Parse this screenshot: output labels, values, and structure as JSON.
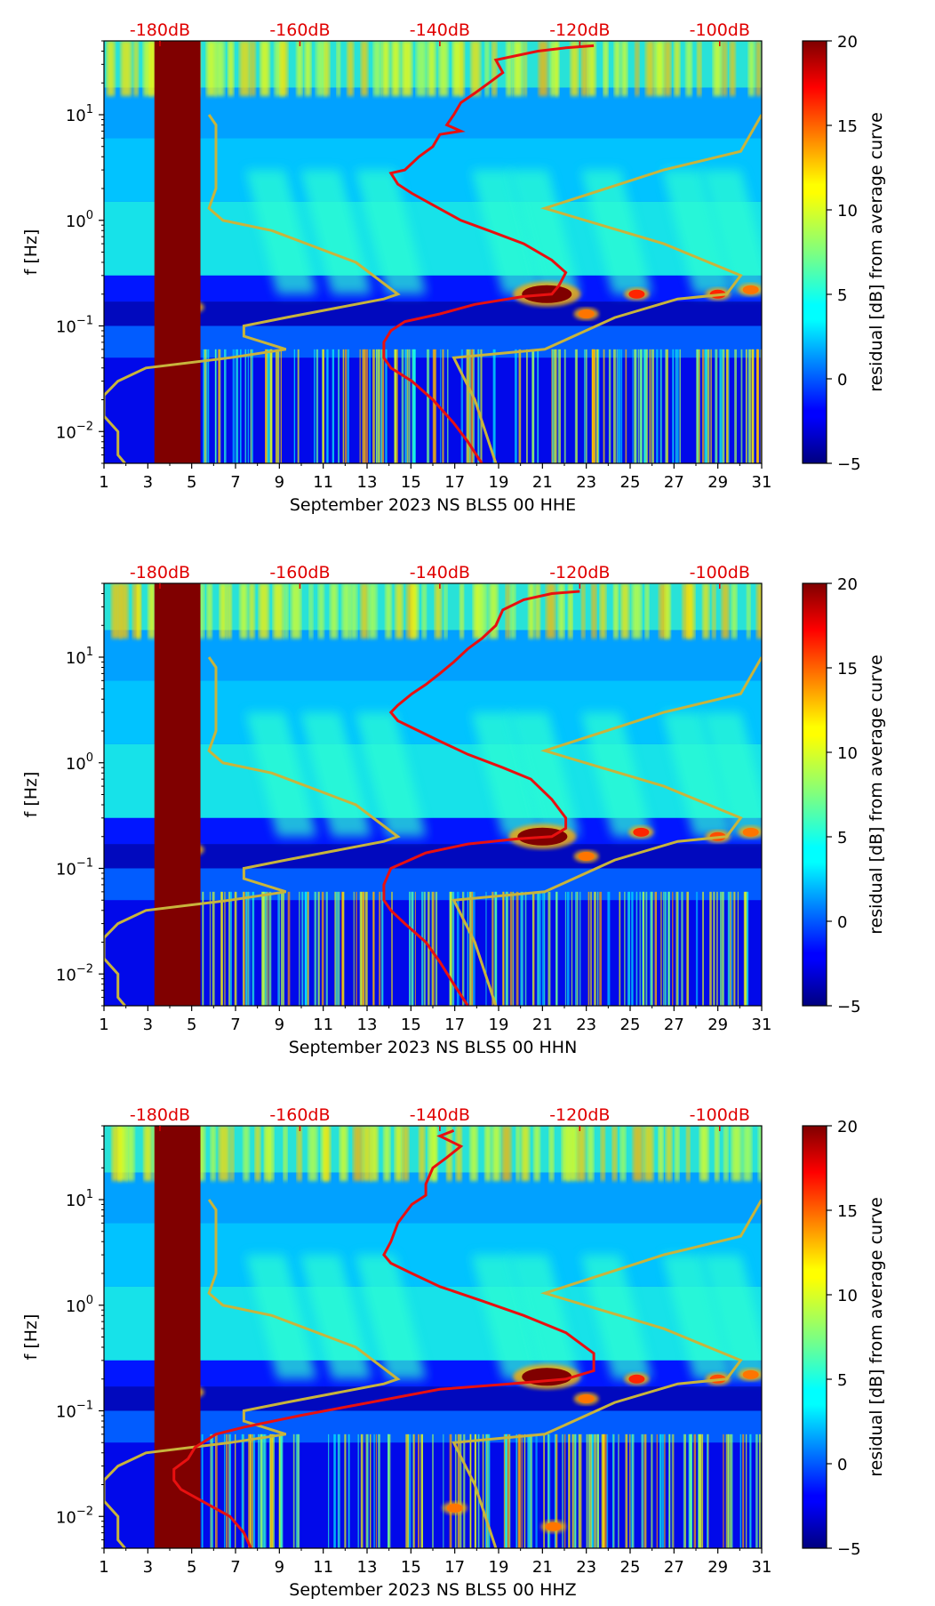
{
  "chart_data": [
    {
      "type": "heatmap",
      "channel": "HHE",
      "xlabel": "September 2023 NS BLS5 00 HHE",
      "ylabel": "f [Hz]",
      "x_ticks": [
        "1",
        "3",
        "5",
        "7",
        "9",
        "11",
        "13",
        "15",
        "17",
        "19",
        "21",
        "23",
        "25",
        "27",
        "29",
        "31"
      ],
      "x_range": [
        1,
        31
      ],
      "y_scale": "log",
      "y_range": [
        0.005,
        50
      ],
      "y_ticks": [
        {
          "base": "10",
          "exp": "1",
          "value": 10
        },
        {
          "base": "10",
          "exp": "0",
          "value": 1
        },
        {
          "base": "10",
          "exp": "−1",
          "value": 0.1
        },
        {
          "base": "10",
          "exp": "−2",
          "value": 0.01
        }
      ],
      "top_axis_labels": [
        "-180dB",
        "-160dB",
        "-140dB",
        "-120dB",
        "-100dB"
      ],
      "top_axis_db_range": [
        -188,
        -94
      ],
      "colorbar": {
        "label": "residual [dB] from average curve",
        "min": -5,
        "max": 20,
        "ticks": [
          "20",
          "15",
          "10",
          "5",
          "0",
          "−5"
        ]
      },
      "data_gap": {
        "x_start": 3.3,
        "x_end": 5.4,
        "color": "#800000"
      },
      "red_curve": {
        "name": "average PSD",
        "points": [
          [
            -118,
            45
          ],
          [
            -122,
            43
          ],
          [
            -126,
            40
          ],
          [
            -132,
            33
          ],
          [
            -131,
            25
          ],
          [
            -133,
            20
          ],
          [
            -135,
            16
          ],
          [
            -137,
            13
          ],
          [
            -138,
            10
          ],
          [
            -139,
            8
          ],
          [
            -137,
            7
          ],
          [
            -140,
            6.5
          ],
          [
            -141,
            5
          ],
          [
            -143,
            4
          ],
          [
            -145,
            3
          ],
          [
            -147,
            2.8
          ],
          [
            -146,
            2.2
          ],
          [
            -144,
            1.8
          ],
          [
            -141,
            1.4
          ],
          [
            -137,
            1.0
          ],
          [
            -133,
            0.8
          ],
          [
            -128,
            0.6
          ],
          [
            -124,
            0.42
          ],
          [
            -122,
            0.32
          ],
          [
            -123,
            0.24
          ],
          [
            -124,
            0.2
          ],
          [
            -128,
            0.19
          ],
          [
            -135,
            0.16
          ],
          [
            -140,
            0.13
          ],
          [
            -145,
            0.11
          ],
          [
            -147,
            0.09
          ],
          [
            -148,
            0.07
          ],
          [
            -148,
            0.05
          ],
          [
            -147,
            0.04
          ],
          [
            -144,
            0.03
          ],
          [
            -141,
            0.02
          ],
          [
            -138,
            0.012
          ],
          [
            -136,
            0.008
          ],
          [
            -134,
            0.005
          ]
        ]
      },
      "yellow_curve": {
        "name": "Peterson NLNM/NHNM",
        "points": [
          [
            -173,
            10
          ],
          [
            -172,
            8
          ],
          [
            -172,
            4
          ],
          [
            -172,
            2
          ],
          [
            -173,
            1.3
          ],
          [
            -171,
            1.0
          ],
          [
            -164,
            0.8
          ],
          [
            -152,
            0.4
          ],
          [
            -146,
            0.2
          ],
          [
            -148,
            0.18
          ],
          [
            -162,
            0.12
          ],
          [
            -168,
            0.1
          ],
          [
            -168,
            0.08
          ],
          [
            -162,
            0.06
          ],
          [
            -170,
            0.05
          ],
          [
            -182,
            0.04
          ],
          [
            -186,
            0.03
          ],
          [
            -188,
            0.022
          ],
          [
            -188,
            0.014
          ],
          [
            -186,
            0.01
          ],
          [
            -186,
            0.006
          ],
          [
            -185,
            0.005
          ]
        ],
        "high_points": [
          [
            -94,
            10
          ],
          [
            -97,
            4.5
          ],
          [
            -108,
            3
          ],
          [
            -125,
            1.3
          ],
          [
            -108,
            0.6
          ],
          [
            -97,
            0.3
          ],
          [
            -99,
            0.2
          ],
          [
            -106,
            0.18
          ],
          [
            -115,
            0.12
          ],
          [
            -125,
            0.06
          ],
          [
            -138,
            0.05
          ],
          [
            -135,
            0.02
          ],
          [
            -132,
            0.005
          ]
        ]
      },
      "hot_spots": [
        {
          "x": 21.2,
          "f": 0.2,
          "value": 20
        },
        {
          "x": 25.3,
          "f": 0.2,
          "value": 16
        },
        {
          "x": 29.0,
          "f": 0.2,
          "value": 16
        },
        {
          "x": 30.5,
          "f": 0.22,
          "value": 14
        },
        {
          "x": 23.0,
          "f": 0.13,
          "value": 14
        },
        {
          "x": 5.0,
          "f": 0.15,
          "value": 15
        }
      ]
    },
    {
      "type": "heatmap",
      "channel": "HHN",
      "xlabel": "September 2023 NS BLS5 00 HHN",
      "ylabel": "f [Hz]",
      "x_ticks": [
        "1",
        "3",
        "5",
        "7",
        "9",
        "11",
        "13",
        "15",
        "17",
        "19",
        "21",
        "23",
        "25",
        "27",
        "29",
        "31"
      ],
      "x_range": [
        1,
        31
      ],
      "y_scale": "log",
      "y_range": [
        0.005,
        50
      ],
      "y_ticks": [
        {
          "base": "10",
          "exp": "1",
          "value": 10
        },
        {
          "base": "10",
          "exp": "0",
          "value": 1
        },
        {
          "base": "10",
          "exp": "−1",
          "value": 0.1
        },
        {
          "base": "10",
          "exp": "−2",
          "value": 0.01
        }
      ],
      "top_axis_labels": [
        "-180dB",
        "-160dB",
        "-140dB",
        "-120dB",
        "-100dB"
      ],
      "top_axis_db_range": [
        -188,
        -94
      ],
      "colorbar": {
        "label": "residual [dB] from average curve",
        "min": -5,
        "max": 20,
        "ticks": [
          "20",
          "15",
          "10",
          "5",
          "0",
          "−5"
        ]
      },
      "data_gap": {
        "x_start": 3.3,
        "x_end": 5.4,
        "color": "#800000"
      },
      "red_curve": {
        "name": "average PSD",
        "points": [
          [
            -120,
            42
          ],
          [
            -124,
            40
          ],
          [
            -128,
            35
          ],
          [
            -131,
            28
          ],
          [
            -132,
            20
          ],
          [
            -134,
            15
          ],
          [
            -136,
            12
          ],
          [
            -138,
            9
          ],
          [
            -140,
            7
          ],
          [
            -142,
            5.5
          ],
          [
            -144,
            4.5
          ],
          [
            -146,
            3.5
          ],
          [
            -147,
            3
          ],
          [
            -146,
            2.5
          ],
          [
            -143,
            2
          ],
          [
            -140,
            1.6
          ],
          [
            -136,
            1.2
          ],
          [
            -131,
            0.9
          ],
          [
            -127,
            0.7
          ],
          [
            -124,
            0.45
          ],
          [
            -122,
            0.3
          ],
          [
            -122,
            0.24
          ],
          [
            -124,
            0.2
          ],
          [
            -129,
            0.19
          ],
          [
            -136,
            0.17
          ],
          [
            -142,
            0.14
          ],
          [
            -147,
            0.1
          ],
          [
            -148,
            0.07
          ],
          [
            -148,
            0.05
          ],
          [
            -147,
            0.04
          ],
          [
            -145,
            0.03
          ],
          [
            -142,
            0.02
          ],
          [
            -140,
            0.013
          ],
          [
            -138,
            0.008
          ],
          [
            -136,
            0.005
          ]
        ]
      },
      "yellow_curve": {
        "name": "Peterson NLNM/NHNM",
        "points": [
          [
            -173,
            10
          ],
          [
            -172,
            8
          ],
          [
            -172,
            4
          ],
          [
            -172,
            2
          ],
          [
            -173,
            1.3
          ],
          [
            -171,
            1.0
          ],
          [
            -164,
            0.8
          ],
          [
            -152,
            0.4
          ],
          [
            -146,
            0.2
          ],
          [
            -148,
            0.18
          ],
          [
            -162,
            0.12
          ],
          [
            -168,
            0.1
          ],
          [
            -168,
            0.08
          ],
          [
            -162,
            0.06
          ],
          [
            -170,
            0.05
          ],
          [
            -182,
            0.04
          ],
          [
            -186,
            0.03
          ],
          [
            -188,
            0.022
          ],
          [
            -188,
            0.014
          ],
          [
            -186,
            0.01
          ],
          [
            -186,
            0.006
          ],
          [
            -185,
            0.005
          ]
        ],
        "high_points": [
          [
            -94,
            10
          ],
          [
            -97,
            4.5
          ],
          [
            -108,
            3
          ],
          [
            -125,
            1.3
          ],
          [
            -108,
            0.6
          ],
          [
            -97,
            0.3
          ],
          [
            -99,
            0.2
          ],
          [
            -106,
            0.18
          ],
          [
            -115,
            0.12
          ],
          [
            -125,
            0.06
          ],
          [
            -138,
            0.05
          ],
          [
            -135,
            0.02
          ],
          [
            -132,
            0.005
          ]
        ]
      },
      "hot_spots": [
        {
          "x": 21.0,
          "f": 0.2,
          "value": 20
        },
        {
          "x": 25.5,
          "f": 0.22,
          "value": 16
        },
        {
          "x": 29.0,
          "f": 0.2,
          "value": 15
        },
        {
          "x": 30.5,
          "f": 0.22,
          "value": 14
        },
        {
          "x": 23.0,
          "f": 0.13,
          "value": 14
        },
        {
          "x": 5.0,
          "f": 0.15,
          "value": 15
        }
      ]
    },
    {
      "type": "heatmap",
      "channel": "HHZ",
      "xlabel": "September 2023 NS BLS5 00 HHZ",
      "ylabel": "f [Hz]",
      "x_ticks": [
        "1",
        "3",
        "5",
        "7",
        "9",
        "11",
        "13",
        "15",
        "17",
        "19",
        "21",
        "23",
        "25",
        "27",
        "29",
        "31"
      ],
      "x_range": [
        1,
        31
      ],
      "y_scale": "log",
      "y_range": [
        0.005,
        50
      ],
      "y_ticks": [
        {
          "base": "10",
          "exp": "1",
          "value": 10
        },
        {
          "base": "10",
          "exp": "0",
          "value": 1
        },
        {
          "base": "10",
          "exp": "−1",
          "value": 0.1
        },
        {
          "base": "10",
          "exp": "−2",
          "value": 0.01
        }
      ],
      "top_axis_labels": [
        "-180dB",
        "-160dB",
        "-140dB",
        "-120dB",
        "-100dB"
      ],
      "top_axis_db_range": [
        -188,
        -94
      ],
      "colorbar": {
        "label": "residual [dB] from average curve",
        "min": -5,
        "max": 20,
        "ticks": [
          "20",
          "15",
          "10",
          "5",
          "0",
          "−5"
        ]
      },
      "data_gap": {
        "x_start": 3.3,
        "x_end": 5.4,
        "color": "#800000"
      },
      "red_curve": {
        "name": "average PSD",
        "points": [
          [
            -138,
            45
          ],
          [
            -140,
            40
          ],
          [
            -137,
            32
          ],
          [
            -139,
            25
          ],
          [
            -141,
            20
          ],
          [
            -142,
            14
          ],
          [
            -142,
            11
          ],
          [
            -144,
            9
          ],
          [
            -146,
            6
          ],
          [
            -147,
            4
          ],
          [
            -148,
            3
          ],
          [
            -147,
            2.5
          ],
          [
            -144,
            2
          ],
          [
            -140,
            1.5
          ],
          [
            -134,
            1.1
          ],
          [
            -128,
            0.8
          ],
          [
            -122,
            0.55
          ],
          [
            -118,
            0.35
          ],
          [
            -118,
            0.24
          ],
          [
            -122,
            0.2
          ],
          [
            -130,
            0.18
          ],
          [
            -140,
            0.16
          ],
          [
            -150,
            0.12
          ],
          [
            -160,
            0.09
          ],
          [
            -168,
            0.07
          ],
          [
            -172,
            0.06
          ],
          [
            -175,
            0.045
          ],
          [
            -176,
            0.035
          ],
          [
            -178,
            0.028
          ],
          [
            -178,
            0.022
          ],
          [
            -177,
            0.018
          ],
          [
            -174,
            0.014
          ],
          [
            -170,
            0.01
          ],
          [
            -168,
            0.007
          ],
          [
            -167,
            0.005
          ]
        ]
      },
      "yellow_curve": {
        "name": "Peterson NLNM/NHNM",
        "points": [
          [
            -173,
            10
          ],
          [
            -172,
            8
          ],
          [
            -172,
            4
          ],
          [
            -172,
            2
          ],
          [
            -173,
            1.3
          ],
          [
            -171,
            1.0
          ],
          [
            -164,
            0.8
          ],
          [
            -152,
            0.4
          ],
          [
            -146,
            0.2
          ],
          [
            -148,
            0.18
          ],
          [
            -162,
            0.12
          ],
          [
            -168,
            0.1
          ],
          [
            -168,
            0.08
          ],
          [
            -162,
            0.06
          ],
          [
            -170,
            0.05
          ],
          [
            -182,
            0.04
          ],
          [
            -186,
            0.03
          ],
          [
            -188,
            0.022
          ],
          [
            -188,
            0.014
          ],
          [
            -186,
            0.01
          ],
          [
            -186,
            0.006
          ],
          [
            -185,
            0.005
          ]
        ],
        "high_points": [
          [
            -94,
            10
          ],
          [
            -97,
            4.5
          ],
          [
            -108,
            3
          ],
          [
            -125,
            1.3
          ],
          [
            -108,
            0.6
          ],
          [
            -97,
            0.3
          ],
          [
            -99,
            0.2
          ],
          [
            -106,
            0.18
          ],
          [
            -115,
            0.12
          ],
          [
            -125,
            0.06
          ],
          [
            -138,
            0.05
          ],
          [
            -135,
            0.02
          ],
          [
            -132,
            0.005
          ]
        ]
      },
      "hot_spots": [
        {
          "x": 21.2,
          "f": 0.21,
          "value": 20
        },
        {
          "x": 25.3,
          "f": 0.2,
          "value": 16
        },
        {
          "x": 29.0,
          "f": 0.2,
          "value": 15
        },
        {
          "x": 30.5,
          "f": 0.22,
          "value": 14
        },
        {
          "x": 23.0,
          "f": 0.13,
          "value": 14
        },
        {
          "x": 5.0,
          "f": 0.15,
          "value": 15
        },
        {
          "x": 17.0,
          "f": 0.012,
          "value": 14
        },
        {
          "x": 21.5,
          "f": 0.008,
          "value": 14
        }
      ]
    }
  ]
}
